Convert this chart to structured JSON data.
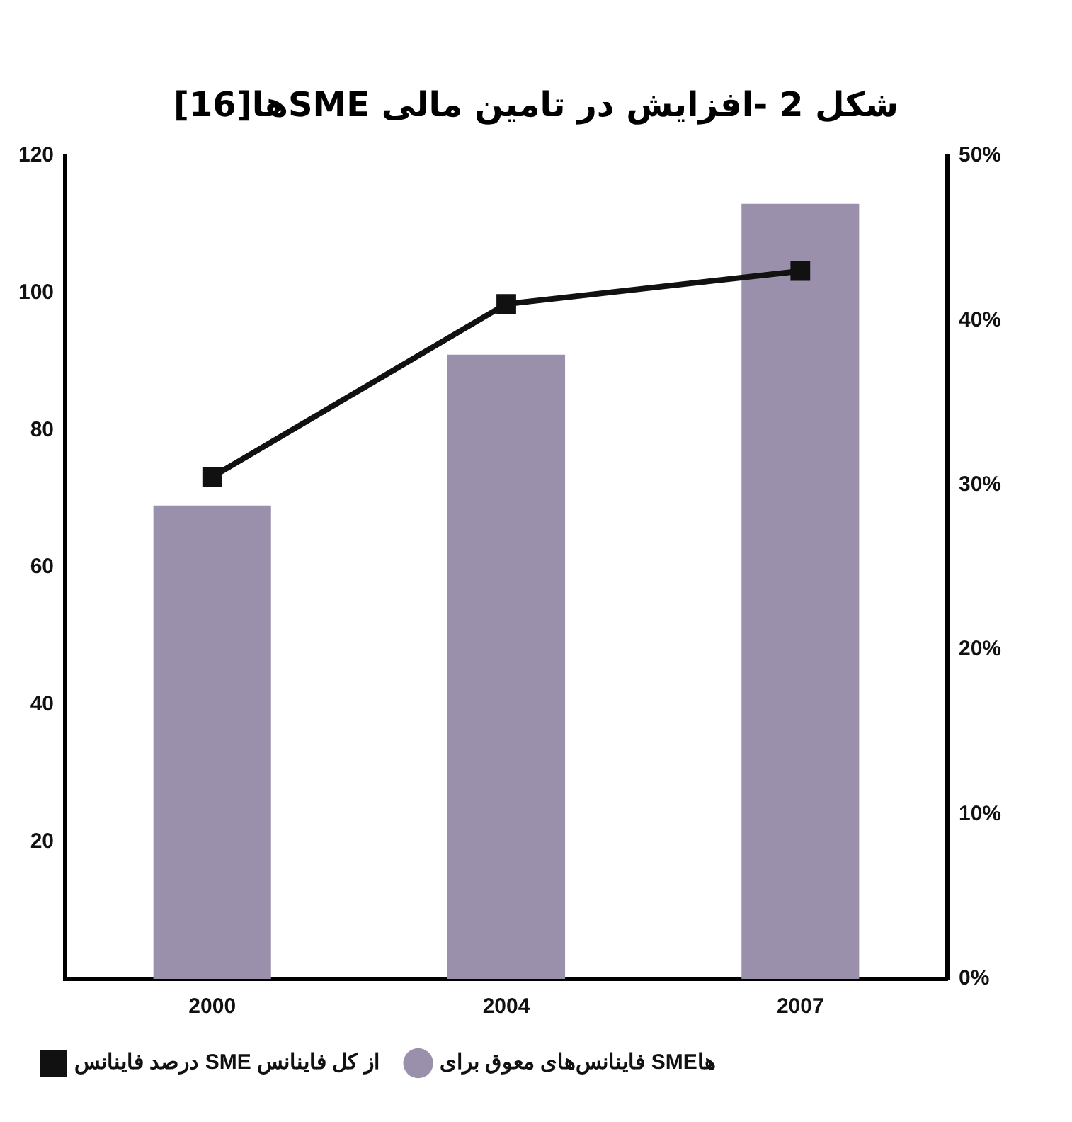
{
  "chart_data": {
    "type": "bar",
    "title": "شکل 2 -افزایش در تامین مالی SMEها[16]",
    "categories": [
      "2000",
      "2004",
      "2007"
    ],
    "series": [
      {
        "name": "فاینانس‌های معوق برای SMEها",
        "color": "#9b90ac",
        "values": [
          69,
          91,
          113
        ]
      },
      {
        "name": "درصد فاینانس SME از کل فاینانس",
        "type": "line",
        "axis": "y2",
        "color": "#111111",
        "values": [
          30.5,
          41,
          43
        ]
      }
    ],
    "ylim": [
      0,
      120
    ],
    "yticks": [
      20,
      40,
      60,
      80,
      100,
      120
    ],
    "y2lim": [
      0,
      50
    ],
    "y2ticks": [
      {
        "value": 0,
        "label": "0%"
      },
      {
        "value": 10,
        "label": "10%"
      },
      {
        "value": 20,
        "label": "20%"
      },
      {
        "value": 30,
        "label": "30%"
      },
      {
        "value": 40,
        "label": "40%"
      },
      {
        "value": 50,
        "label": "50%"
      }
    ],
    "grid": false,
    "legend": "bottom left",
    "marker": "square",
    "line_style": "solid"
  }
}
